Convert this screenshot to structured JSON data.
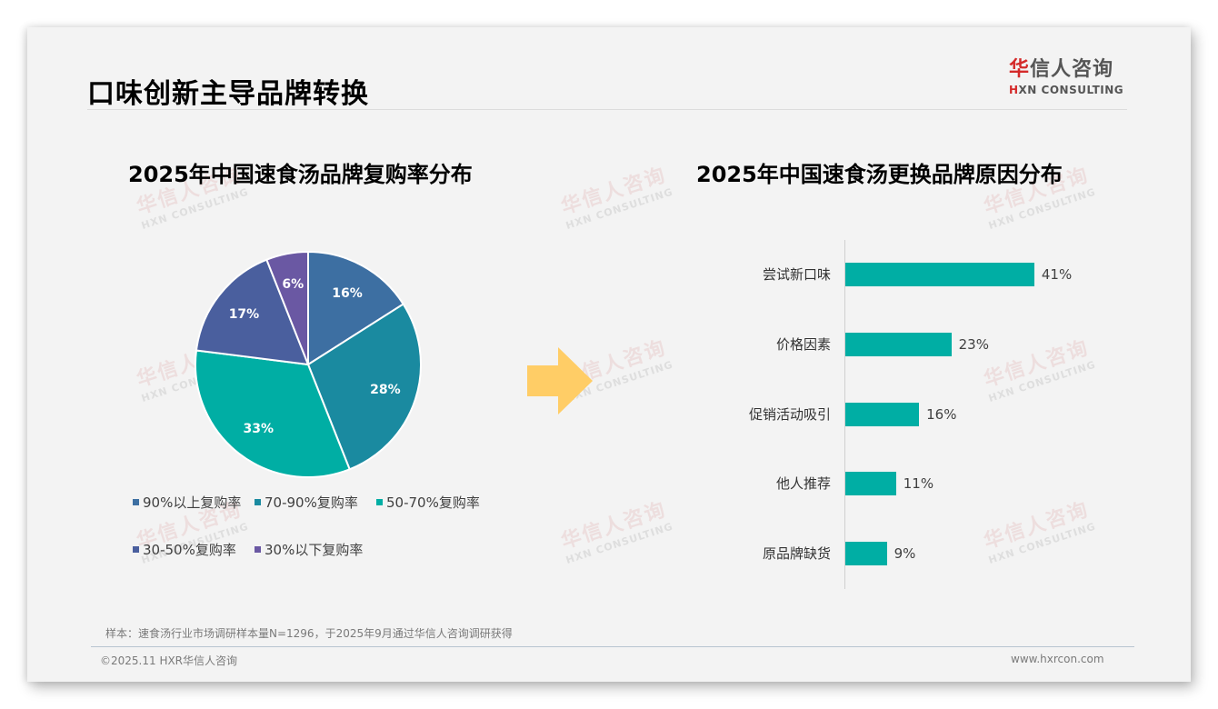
{
  "page": {
    "title": "口味创新主导品牌转换",
    "logo": {
      "cn_first": "华",
      "cn_rest": "信人咨询",
      "en_first": "H",
      "en_rest": "XN CONSULTING"
    },
    "watermark": {
      "cn": "华信人咨询",
      "en": "HXN CONSULTING"
    },
    "note": "样本：速食汤行业市场调研样本量N=1296，于2025年9月通过华信人咨询调研获得",
    "copyright": "©2025.11 HXR华信人咨询",
    "website": "www.hxrcon.com",
    "arrow_color": "#ffcd66"
  },
  "chart_data": [
    {
      "type": "pie",
      "title": "2025年中国速食汤品牌复购率分布",
      "categories": [
        "90%以上复购率",
        "70-90%复购率",
        "50-70%复购率",
        "30-50%复购率",
        "30%以下复购率"
      ],
      "values": [
        16,
        28,
        33,
        17,
        6
      ],
      "labels": [
        "16%",
        "28%",
        "33%",
        "17%",
        "6%"
      ],
      "colors": [
        "#3d6fa2",
        "#1a8aa0",
        "#00aea4",
        "#4a5f9e",
        "#6a58a3"
      ],
      "start_angle": "12 o'clock, clockwise",
      "legend_position": "bottom"
    },
    {
      "type": "bar",
      "orientation": "horizontal",
      "title": "2025年中国速食汤更换品牌原因分布",
      "categories": [
        "尝试新口味",
        "价格因素",
        "促销活动吸引",
        "他人推荐",
        "原品牌缺货"
      ],
      "values": [
        41,
        23,
        16,
        11,
        9
      ],
      "labels": [
        "41%",
        "23%",
        "16%",
        "11%",
        "9%"
      ],
      "color": "#00aea4",
      "xlabel": "",
      "ylabel": "",
      "grid": false
    }
  ]
}
